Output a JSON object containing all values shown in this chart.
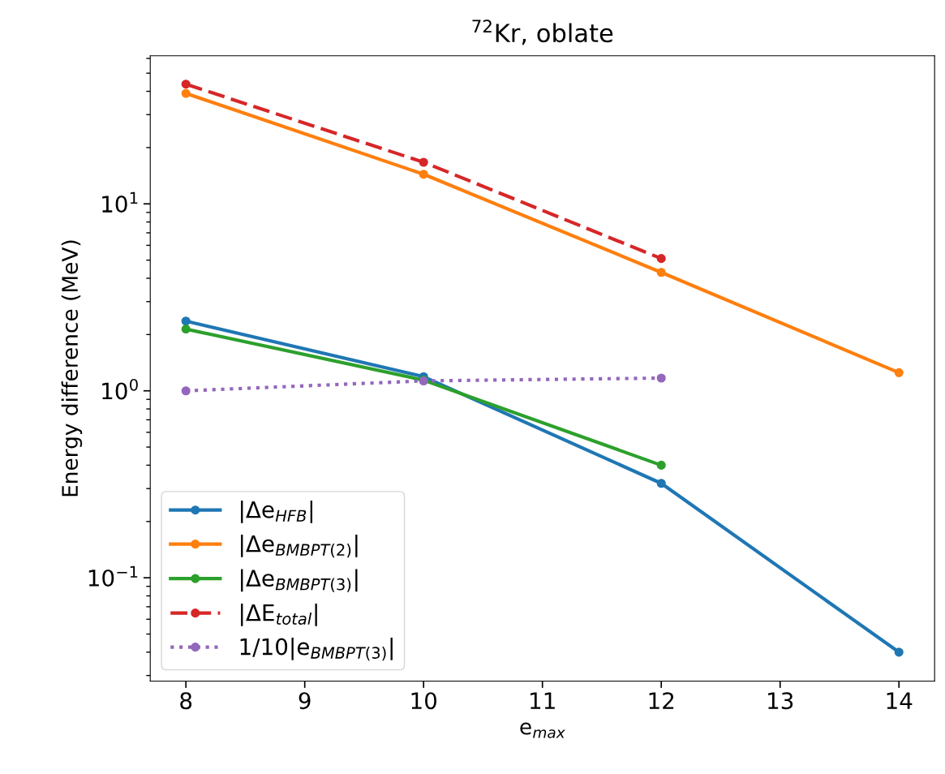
{
  "chart_data": {
    "type": "line",
    "title": "$^{72}$Kr, oblate",
    "xlabel": "e$_{max}$",
    "ylabel": "Energy difference (MeV)",
    "log": "y",
    "grid": false,
    "legend": "bottom left",
    "marker": "circle",
    "x": [
      8,
      10,
      12,
      14
    ],
    "xlim": [
      7.7,
      14.3
    ],
    "xticks": [
      8,
      9,
      10,
      11,
      12,
      13,
      14
    ],
    "ylim": [
      0.028,
      62
    ],
    "yticks": [
      {
        "value": 0.1,
        "label": "10$^{−1}$"
      },
      {
        "value": 1,
        "label": "10$^{0}$"
      },
      {
        "value": 10,
        "label": "10$^{1}$"
      }
    ],
    "series": [
      {
        "name": "|Δe$_{HFB}$|",
        "color": "#1f77b4",
        "line_style": "solid",
        "values": [
          2.36,
          1.19,
          0.32,
          0.04
        ]
      },
      {
        "name": "|Δe$_{BMBPT(2)}$|",
        "color": "#ff7f0e",
        "line_style": "solid",
        "values": [
          39,
          14.4,
          4.3,
          1.25
        ]
      },
      {
        "name": "|Δe$_{BMBPT(3)}$|",
        "color": "#2ca02c",
        "line_style": "solid",
        "values": [
          2.14,
          1.14,
          0.4,
          null
        ]
      },
      {
        "name": "|ΔE$_{total}$|",
        "color": "#d62728",
        "line_style": "dashed",
        "values": [
          43.7,
          16.7,
          5.1,
          null
        ]
      },
      {
        "name": "1/10|e$_{BMBPT(3)}$|",
        "color": "#9467bd",
        "line_style": "dotted",
        "values": [
          1.0,
          1.13,
          1.17,
          null
        ]
      }
    ]
  }
}
